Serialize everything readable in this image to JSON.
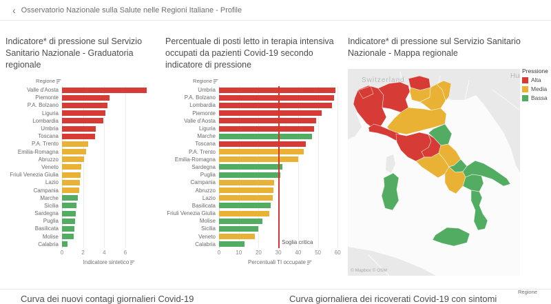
{
  "header": {
    "back_glyph": "‹",
    "title": "Osservatorio Nazionale sulla Salute nelle Regioni Italiane - Profile"
  },
  "colors": {
    "Alta": "#d73b35",
    "Media": "#e9b234",
    "Bassa": "#52ad63",
    "reference_line": "#d9342b",
    "land": "#e9e9e9",
    "sea": "#fbfbfb"
  },
  "chart_data": [
    {
      "type": "bar",
      "title": "Indicatore* di pressione sul Servizio Sanitario Nazionale - Graduatoria regionale",
      "column_header": "Regione",
      "xlabel": "Indicatore sintetico",
      "xticks": [
        0,
        2,
        4,
        6
      ],
      "xlim": [
        0,
        9
      ],
      "categories": [
        "Valle d'Aosta",
        "Piemonte",
        "P.A. Bolzano",
        "Liguria",
        "Lombardia",
        "Umbria",
        "Toscana",
        "P.A. Trento",
        "Emilia-Romagna",
        "Abruzzo",
        "Veneto",
        "Friuli Venezia Giulia",
        "Lazio",
        "Campania",
        "Marche",
        "Sicilia",
        "Sardegna",
        "Puglia",
        "Basilicata",
        "Molise",
        "Calabria"
      ],
      "values": [
        8.0,
        4.5,
        4.3,
        4.1,
        3.9,
        3.2,
        3.1,
        2.5,
        2.3,
        2.1,
        1.8,
        1.75,
        1.7,
        1.6,
        1.5,
        1.4,
        1.3,
        1.25,
        1.2,
        1.1,
        0.5
      ],
      "levels": [
        "Alta",
        "Alta",
        "Alta",
        "Alta",
        "Alta",
        "Alta",
        "Alta",
        "Media",
        "Media",
        "Media",
        "Media",
        "Media",
        "Media",
        "Media",
        "Bassa",
        "Bassa",
        "Bassa",
        "Bassa",
        "Bassa",
        "Bassa",
        "Bassa"
      ]
    },
    {
      "type": "bar",
      "title": "Percentuale di posti letto in terapia intensiva occupati da pazienti Covid-19 secondo indicatore di pressione",
      "column_header": "Regione",
      "xlabel": "Percentuali TI occupate",
      "xticks": [
        0,
        10,
        20,
        30,
        40,
        50,
        60
      ],
      "xlim": [
        0,
        62
      ],
      "categories": [
        "Umbria",
        "P.A. Bolzano",
        "Lombardia",
        "Piemonte",
        "Valle d'Aosta",
        "Liguria",
        "Marche",
        "Toscana",
        "P.A. Trento",
        "Emilia-Romagna",
        "Sardegna",
        "Puglia",
        "Campania",
        "Abruzzo",
        "Lazio",
        "Basilicata",
        "Friuli Venezia Giulia",
        "Molise",
        "Sicilia",
        "Veneto",
        "Calabria"
      ],
      "values": [
        59,
        58,
        57,
        52,
        49,
        48,
        47,
        44,
        43,
        40,
        32,
        31,
        28,
        27.5,
        27,
        26,
        25.5,
        22,
        20,
        18,
        13
      ],
      "levels": [
        "Alta",
        "Alta",
        "Alta",
        "Alta",
        "Alta",
        "Alta",
        "Bassa",
        "Alta",
        "Media",
        "Media",
        "Bassa",
        "Bassa",
        "Media",
        "Media",
        "Media",
        "Bassa",
        "Media",
        "Bassa",
        "Bassa",
        "Media",
        "Bassa"
      ],
      "reference_line": {
        "value": 30,
        "label": "Soglia critica"
      }
    },
    {
      "type": "choropleth",
      "title": "Indicatore* di pressione sul Servizio Sanitario Nazionale - Mappa regionale",
      "legend": {
        "title": "Pressione",
        "items": [
          "Alta",
          "Media",
          "Bassa"
        ]
      },
      "regions": {
        "Valle d'Aosta": "Alta",
        "Piemonte": "Alta",
        "Lombardia": "Alta",
        "Liguria": "Alta",
        "P.A. Bolzano": "Alta",
        "P.A. Trento": "Media",
        "Veneto": "Media",
        "Friuli Venezia Giulia": "Media",
        "Emilia-Romagna": "Media",
        "Toscana": "Alta",
        "Umbria": "Alta",
        "Marche": "Bassa",
        "Lazio": "Media",
        "Abruzzo": "Media",
        "Molise": "Bassa",
        "Campania": "Media",
        "Puglia": "Bassa",
        "Basilicata": "Bassa",
        "Calabria": "Bassa",
        "Sicilia": "Bassa",
        "Sardegna": "Bassa"
      },
      "map_labels": {
        "neighbor_left": "Switzerland",
        "neighbor_right": "Hun",
        "attribution": "© Mapbox © OSM"
      }
    }
  ],
  "bottom": {
    "left_title": "Curva dei nuovi contagi giornalieri Covid-19",
    "right_title": "Curva giornaliera dei ricoverati Covid-19 con sintomi",
    "filter_label": "Regione"
  }
}
